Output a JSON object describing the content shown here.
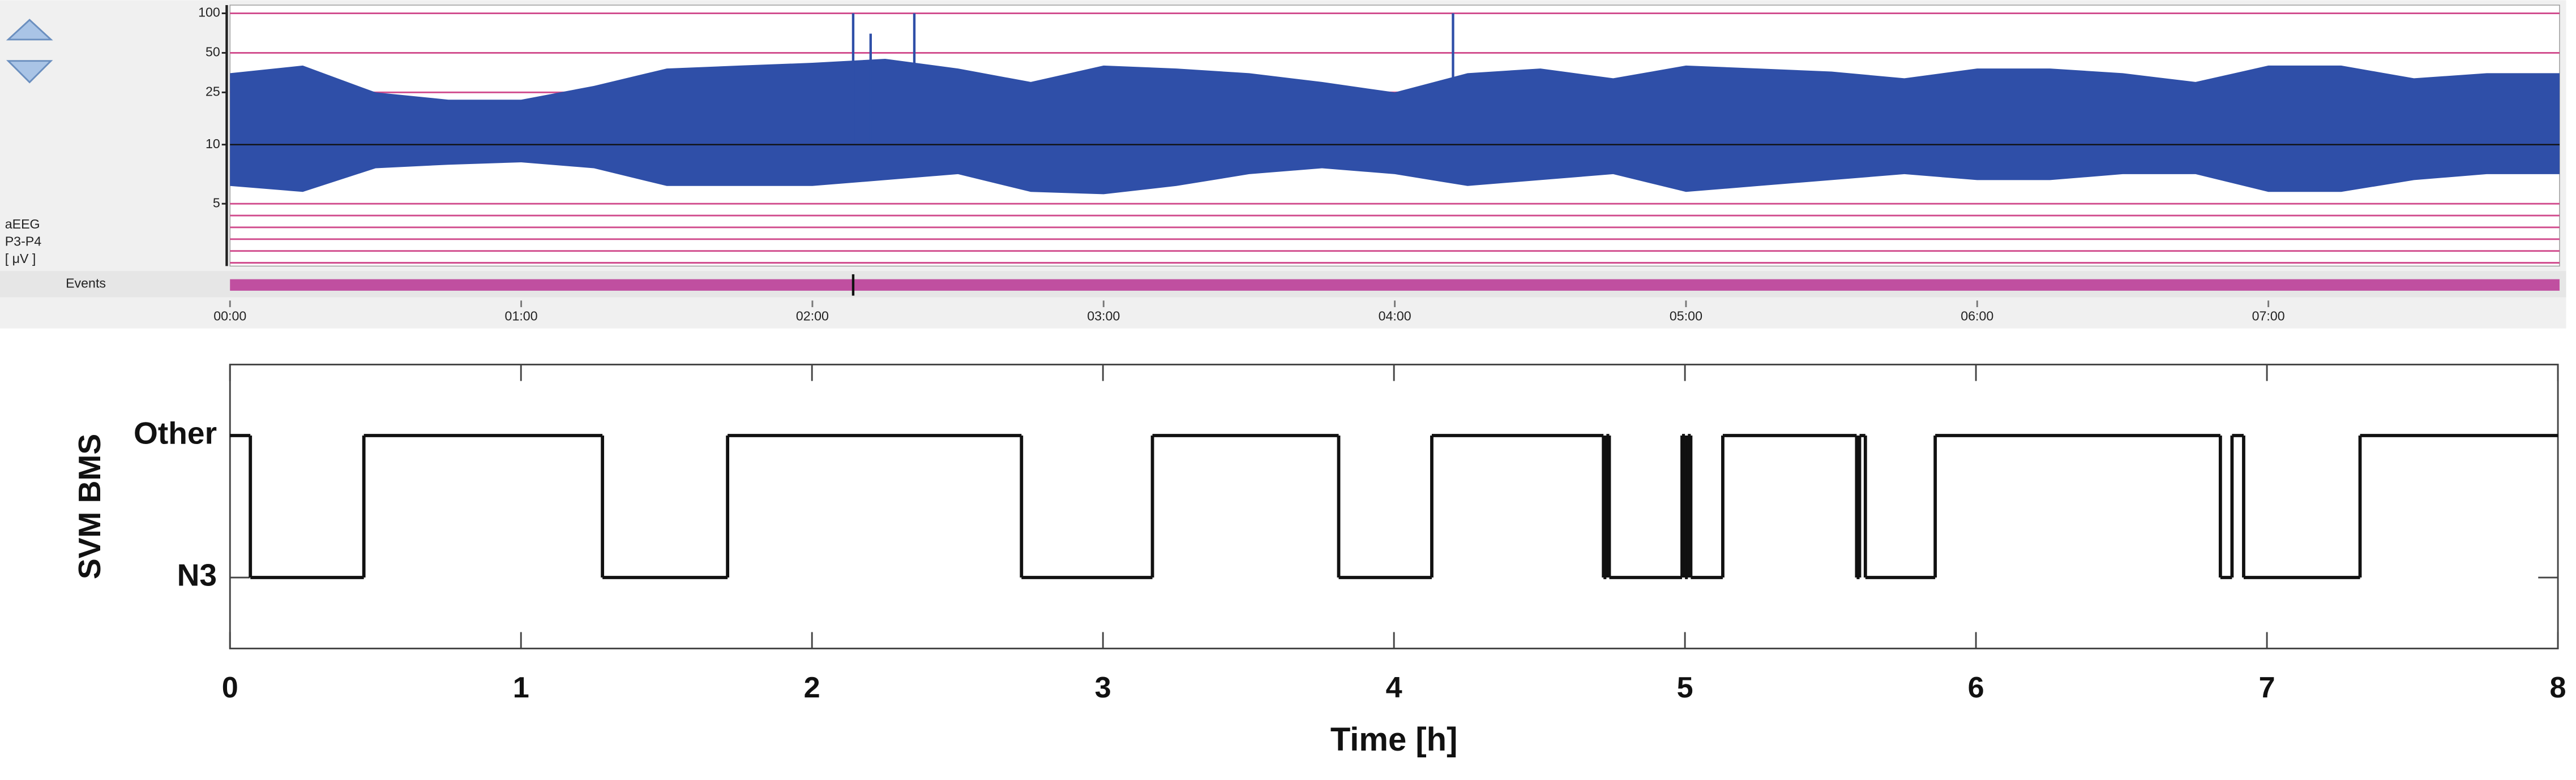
{
  "chart_data": [
    {
      "type": "aeeg",
      "channel_labels": [
        "aEEG",
        "P3-P4",
        "[ μV ]"
      ],
      "events_label": "Events",
      "event_markers": [
        2.14
      ],
      "xlim": [
        0,
        8
      ],
      "xticks": [
        {
          "value": 0,
          "label": "00:00"
        },
        {
          "value": 1,
          "label": "01:00"
        },
        {
          "value": 2,
          "label": "02:00"
        },
        {
          "value": 3,
          "label": "03:00"
        },
        {
          "value": 4,
          "label": "04:00"
        },
        {
          "value": 5,
          "label": "05:00"
        },
        {
          "value": 6,
          "label": "06:00"
        },
        {
          "value": 7,
          "label": "07:00"
        }
      ],
      "ylim": [
        0,
        100
      ],
      "yscale": "linear-log",
      "scale_break": 10,
      "yticks": [
        5,
        10,
        25,
        50,
        100
      ],
      "grid_values": [
        0,
        1,
        2,
        3,
        4,
        5,
        25,
        50,
        100
      ],
      "grid_color": "#d04a8c",
      "reference_line": 10,
      "color": "#2f4fa8",
      "x": [
        0,
        0.25,
        0.5,
        0.75,
        1,
        1.25,
        1.5,
        1.75,
        2,
        2.25,
        2.5,
        2.75,
        3,
        3.25,
        3.5,
        3.75,
        4,
        4.25,
        4.5,
        4.75,
        5,
        5.25,
        5.5,
        5.75,
        6,
        6.25,
        6.5,
        6.75,
        7,
        7.25,
        7.5,
        7.75,
        8
      ],
      "upper": [
        35,
        40,
        25,
        22,
        22,
        28,
        38,
        40,
        42,
        45,
        38,
        30,
        40,
        38,
        35,
        30,
        25,
        35,
        38,
        32,
        40,
        38,
        36,
        32,
        38,
        38,
        35,
        30,
        40,
        40,
        32,
        35,
        35
      ],
      "lower": [
        6.5,
        6,
        8,
        8.3,
        8.5,
        8,
        6.5,
        6.5,
        6.5,
        7,
        7.5,
        6,
        5.8,
        6.5,
        7.5,
        8,
        7.5,
        6.5,
        7,
        7.5,
        6,
        6.5,
        7,
        7.5,
        7,
        7,
        7.5,
        7.5,
        6,
        6,
        7,
        7.5,
        7.5
      ],
      "spikes": {
        "x": [
          2.14,
          2.2,
          2.35,
          4.2
        ],
        "values": [
          100,
          70,
          100,
          100
        ]
      }
    },
    {
      "type": "step",
      "ylabel": "SVM BMS",
      "xlabel": "Time [h]",
      "xlim": [
        0,
        8
      ],
      "xticks": [
        0,
        1,
        2,
        3,
        4,
        5,
        6,
        7,
        8
      ],
      "ylim": [
        -0.5,
        1.5
      ],
      "yticks": [
        {
          "value": 0,
          "label": "N3"
        },
        {
          "value": 1,
          "label": "Other"
        }
      ],
      "color": "#111111",
      "x": [
        0,
        0.07,
        0.46,
        1.28,
        1.71,
        2.72,
        3.17,
        3.81,
        4.13,
        4.72,
        4.73,
        4.74,
        4.99,
        5.0,
        5.01,
        5.02,
        5.13,
        5.59,
        5.6,
        5.62,
        5.86,
        6.84,
        6.88,
        6.92,
        7.32
      ],
      "values": [
        1,
        0,
        1,
        0,
        1,
        0,
        1,
        0,
        1,
        0,
        1,
        0,
        1,
        0,
        1,
        0,
        1,
        0,
        1,
        0,
        1,
        0,
        1,
        0,
        1
      ]
    }
  ]
}
